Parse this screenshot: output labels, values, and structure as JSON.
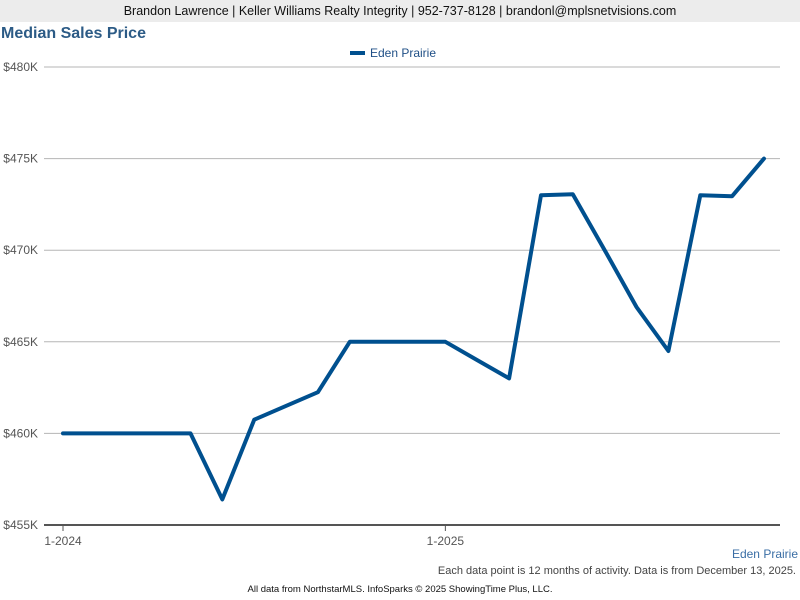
{
  "header": {
    "agent_info": "Brandon Lawrence | Keller Williams Realty Integrity | 952-737-8128 | brandonl@mplsnetvisions.com"
  },
  "chart_data": {
    "type": "line",
    "title": "Median Sales Price",
    "xlabel": "",
    "ylabel": "",
    "ylim": [
      455000,
      480000
    ],
    "y_ticks": [
      {
        "value": 455000,
        "label": "$455K"
      },
      {
        "value": 460000,
        "label": "$460K"
      },
      {
        "value": 465000,
        "label": "$465K"
      },
      {
        "value": 470000,
        "label": "$470K"
      },
      {
        "value": 475000,
        "label": "$475K"
      },
      {
        "value": 480000,
        "label": "$480K"
      }
    ],
    "x_ticks": [
      {
        "index": 0,
        "label": "1-2024"
      },
      {
        "index": 12,
        "label": "1-2025"
      }
    ],
    "x": [
      "1-2024",
      "2-2024",
      "3-2024",
      "4-2024",
      "5-2024",
      "6-2024",
      "7-2024",
      "8-2024",
      "9-2024",
      "10-2024",
      "11-2024",
      "12-2024",
      "1-2025",
      "2-2025",
      "3-2025",
      "4-2025",
      "5-2025",
      "6-2025",
      "7-2025",
      "8-2025",
      "9-2025",
      "10-2025",
      "11-2025"
    ],
    "series": [
      {
        "name": "Eden Prairie",
        "color": "#00508f",
        "values": [
          460000,
          460000,
          460000,
          460000,
          460000,
          456400,
          460750,
          461500,
          462250,
          465000,
          465000,
          465000,
          465000,
          464000,
          463000,
          473000,
          473050,
          470000,
          466900,
          464500,
          473000,
          472950,
          475000
        ]
      }
    ],
    "legend_position": "top-center",
    "grid": true
  },
  "bottom_label": "Eden Prairie",
  "footnote": "Each data point is 12 months of activity. Data is from December 13, 2025.",
  "source": "All data from NorthstarMLS. InfoSparks © 2025 ShowingTime Plus, LLC."
}
